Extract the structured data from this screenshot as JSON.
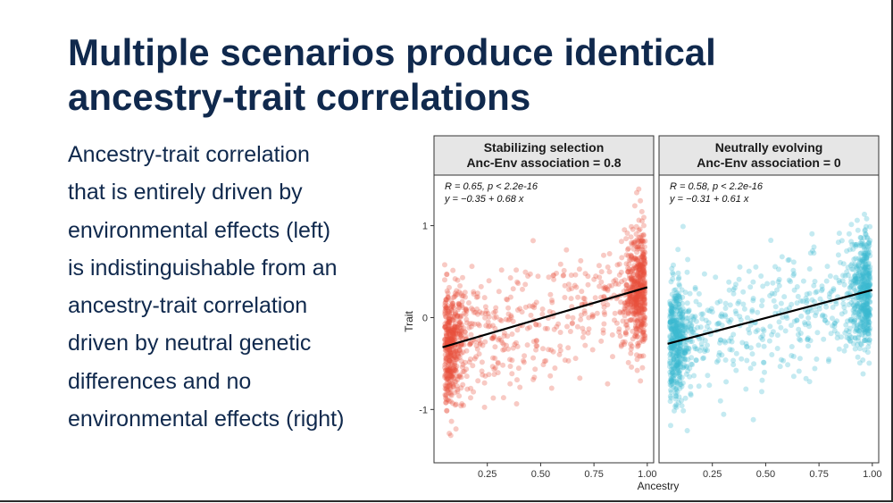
{
  "slide": {
    "title_lines": [
      "Multiple scenarios produce identical",
      "ancestry-trait correlations"
    ],
    "body_lines": [
      "Ancestry-trait correlation",
      "that is entirely driven by",
      "environmental effects (left)",
      "is indistinguishable from an",
      "ancestry-trait correlation",
      "driven by neutral genetic",
      "differences and no",
      "environmental effects (right)"
    ]
  },
  "chart_data": {
    "type": "scatter",
    "xlabel": "Ancestry",
    "ylabel": "Trait",
    "xlim": [
      0,
      1.03
    ],
    "ylim": [
      -1.58,
      1.55
    ],
    "xticks": [
      0.25,
      0.5,
      0.75,
      1.0
    ],
    "xtick_labels": [
      "0.25",
      "0.50",
      "0.75",
      "1.00"
    ],
    "yticks": [
      -1,
      0,
      1
    ],
    "ytick_labels": [
      "-1",
      "0",
      "1"
    ],
    "grid": false,
    "panels": [
      {
        "strip_lines": [
          "Stabilizing selection",
          "Anc-Env association = 0.8"
        ],
        "stat_r": "R = 0.65, p < 2.2e-16",
        "stat_eq": "y = −0.35 + 0.68 x",
        "color": "#e8503a",
        "intercept": -0.35,
        "slope": 0.68,
        "x_range": [
          0.04,
          1.0
        ]
      },
      {
        "strip_lines": [
          "Neutrally evolving",
          "Anc-Env association = 0"
        ],
        "stat_r": "R = 0.58, p < 2.2e-16",
        "stat_eq": "y = −0.31 + 0.61 x",
        "color": "#3db8d2",
        "intercept": -0.31,
        "slope": 0.61,
        "x_range": [
          0.04,
          1.0
        ]
      }
    ]
  }
}
